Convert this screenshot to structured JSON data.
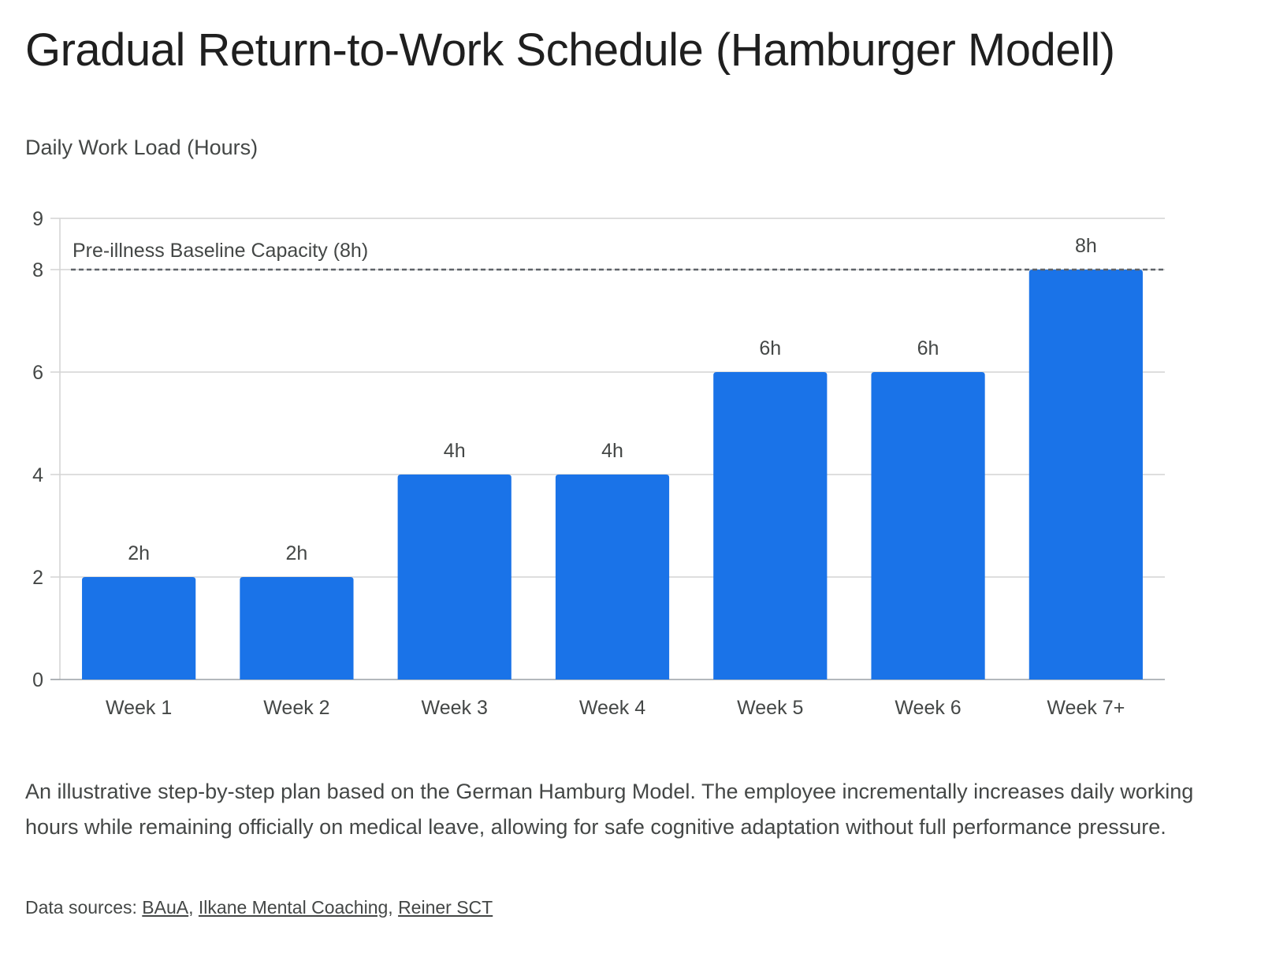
{
  "title": "Gradual Return-to-Work Schedule (Hamburger Modell)",
  "description": "An illustrative step-by-step plan based on the German Hamburg Model. The employee incrementally increases daily working hours while remaining officially on medical leave, allowing for safe cognitive adaptation without full performance pressure.",
  "sources": {
    "prefix": "Data sources: ",
    "links": [
      "BAuA",
      "Ilkane Mental Coaching",
      "Reiner SCT"
    ],
    "separator": ", "
  },
  "colors": {
    "bar": "#1a73e8",
    "grid": "#d3d3d3",
    "axis": "#9aa0a6",
    "text": "#444746",
    "baseline": "#5f6368"
  },
  "chart_data": {
    "type": "bar",
    "ylabel": "Daily Work Load (Hours)",
    "xlabel": "",
    "categories": [
      "Week 1",
      "Week 2",
      "Week 3",
      "Week 4",
      "Week 5",
      "Week 6",
      "Week 7+"
    ],
    "values": [
      2,
      2,
      4,
      4,
      6,
      6,
      8
    ],
    "data_labels": [
      "2h",
      "2h",
      "4h",
      "4h",
      "6h",
      "6h",
      "8h"
    ],
    "ylim": [
      0,
      9
    ],
    "yticks": [
      0,
      2,
      4,
      6,
      8,
      9
    ],
    "grid": true,
    "reference_line": {
      "value": 8,
      "label": "Pre-illness Baseline Capacity (8h)",
      "style": "dashed"
    }
  }
}
